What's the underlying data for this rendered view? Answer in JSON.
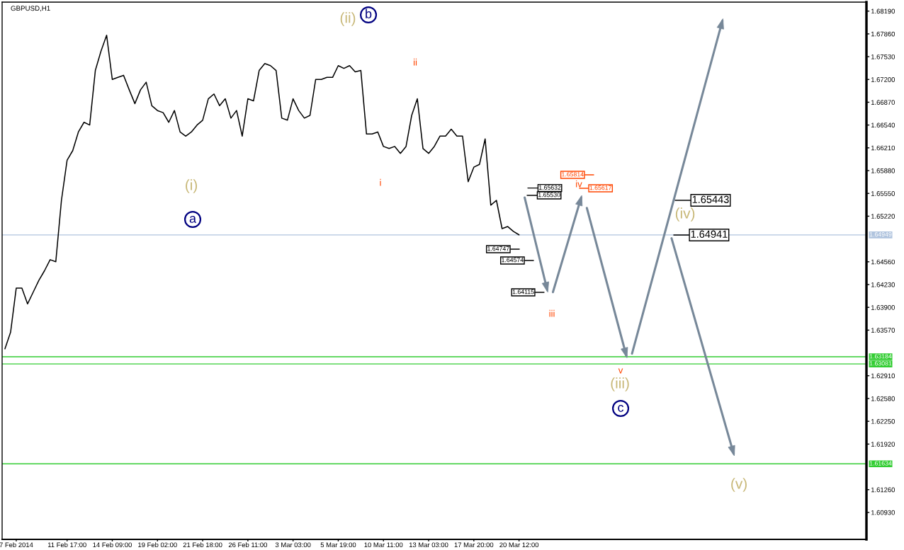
{
  "chart_data": {
    "type": "line",
    "title": "GBPUSD,H1",
    "categories": [
      null,
      null,
      "7 Feb 2014",
      null,
      null,
      null,
      null,
      null,
      null,
      null,
      null,
      "11 Feb 17:00",
      null,
      null,
      null,
      null,
      null,
      null,
      null,
      "14 Feb 09:00",
      null,
      null,
      null,
      null,
      null,
      null,
      null,
      "19 Feb 02:00",
      null,
      null,
      null,
      null,
      null,
      null,
      null,
      "21 Feb 18:00",
      null,
      null,
      null,
      null,
      null,
      null,
      null,
      "26 Feb 11:00",
      null,
      null,
      null,
      null,
      null,
      null,
      null,
      "3 Mar 03:00",
      null,
      null,
      null,
      null,
      null,
      null,
      null,
      "5 Mar 19:00",
      null,
      null,
      null,
      null,
      null,
      null,
      null,
      "10 Mar 11:00",
      null,
      null,
      null,
      null,
      null,
      null,
      null,
      "13 Mar 03:00",
      null,
      null,
      null,
      null,
      null,
      null,
      null,
      "17 Mar 20:00",
      null,
      null,
      null,
      null,
      null,
      null,
      null,
      "20 Mar 12:00",
      null,
      null,
      null,
      null,
      null,
      null,
      null,
      null,
      null,
      null,
      null,
      null,
      null,
      null,
      null,
      null,
      null,
      null,
      null,
      null,
      null,
      null,
      null,
      null,
      null,
      null,
      null,
      null,
      null,
      null,
      null,
      null,
      null,
      null,
      null,
      null,
      null,
      null,
      null,
      null,
      null,
      null,
      null,
      null,
      null,
      null,
      null,
      null,
      null,
      null,
      null,
      null,
      null,
      null,
      null,
      null,
      null,
      null,
      null,
      null,
      null
    ],
    "series": [
      {
        "color": "#000000",
        "values": [
          1.633,
          1.6354,
          1.6418,
          1.6418,
          1.6395,
          1.6412,
          1.6429,
          1.6443,
          1.6459,
          1.6456,
          1.6545,
          1.6603,
          1.6617,
          1.6644,
          1.6658,
          1.6654,
          1.6733,
          1.6761,
          1.6784,
          1.672,
          1.6723,
          1.6726,
          1.6705,
          1.6685,
          1.6705,
          1.6716,
          1.6682,
          1.6675,
          1.6672,
          1.6658,
          1.6675,
          1.6644,
          1.6638,
          1.6644,
          1.6654,
          1.6661,
          1.6692,
          1.6699,
          1.6682,
          1.6692,
          1.6664,
          1.6675,
          1.6638,
          1.6692,
          1.6689,
          1.6733,
          1.6743,
          1.674,
          1.6733,
          1.6664,
          1.6661,
          1.6692,
          1.6675,
          1.6664,
          1.6668,
          1.672,
          1.672,
          1.6723,
          1.6723,
          1.674,
          1.6736,
          1.674,
          1.6731,
          1.6733,
          1.6641,
          1.6641,
          1.6644,
          1.6623,
          1.662,
          1.6623,
          1.6613,
          1.6623,
          1.6668,
          1.6692,
          1.662,
          1.6613,
          1.6623,
          1.6638,
          1.6638,
          1.6648,
          1.6638,
          1.6638,
          1.6572,
          1.6593,
          1.6597,
          1.6634,
          1.6538,
          1.6545,
          1.6504,
          1.6507,
          1.65,
          1.6495,
          null,
          null,
          null,
          null,
          null,
          null,
          null,
          null,
          null,
          null,
          null,
          null,
          null,
          null,
          null,
          null,
          null,
          null,
          null,
          null,
          null,
          null,
          null,
          null,
          null,
          null,
          null,
          null,
          null,
          null,
          null,
          null,
          null,
          null,
          null,
          null,
          null,
          null,
          null,
          null,
          null,
          null,
          null,
          null,
          null,
          null,
          null,
          null,
          null,
          null,
          null,
          null,
          null,
          null,
          null,
          null,
          null,
          null,
          null,
          null,
          null
        ]
      },
      {
        "color": "#778899",
        "values": [
          null,
          null,
          null,
          null,
          null,
          null,
          null,
          null,
          null,
          null,
          null,
          null,
          null,
          null,
          null,
          null,
          null,
          null,
          null,
          null,
          null,
          null,
          null,
          null,
          null,
          null,
          null,
          null,
          null,
          null,
          null,
          null,
          null,
          null,
          null,
          null,
          null,
          null,
          null,
          null,
          null,
          null,
          null,
          null,
          null,
          null,
          null,
          null,
          null,
          null,
          null,
          null,
          null,
          null,
          null,
          null,
          null,
          null,
          null,
          null,
          null,
          null,
          null,
          null,
          null,
          null,
          null,
          null,
          null,
          null,
          null,
          null,
          null,
          null,
          null,
          null,
          null,
          null,
          null,
          null,
          null,
          null,
          null,
          null,
          null,
          null,
          null,
          null,
          null,
          null,
          null,
          null,
          1.6549,
          null,
          null,
          null,
          1.6415,
          null,
          null,
          null,
          null,
          null,
          null,
          null,
          null,
          null,
          null,
          null,
          null,
          null,
          null,
          null,
          null,
          null,
          null,
          null,
          null,
          null,
          null,
          null,
          null,
          null,
          null,
          null,
          null,
          null,
          null,
          null,
          null,
          null,
          null,
          null,
          null,
          null,
          null,
          null,
          null,
          null,
          null,
          null,
          null,
          null,
          null,
          null,
          null,
          null,
          null,
          null,
          null,
          null,
          null,
          null,
          null
        ]
      },
      {
        "color": "#778899",
        "values": [
          null,
          null,
          null,
          null,
          null,
          null,
          null,
          null,
          null,
          null,
          null,
          null,
          null,
          null,
          null,
          null,
          null,
          null,
          null,
          null,
          null,
          null,
          null,
          null,
          null,
          null,
          null,
          null,
          null,
          null,
          null,
          null,
          null,
          null,
          null,
          null,
          null,
          null,
          null,
          null,
          null,
          null,
          null,
          null,
          null,
          null,
          null,
          null,
          null,
          null,
          null,
          null,
          null,
          null,
          null,
          null,
          null,
          null,
          null,
          null,
          null,
          null,
          null,
          null,
          null,
          null,
          null,
          null,
          null,
          null,
          null,
          null,
          null,
          null,
          null,
          null,
          null,
          null,
          null,
          null,
          null,
          null,
          null,
          null,
          null,
          null,
          null,
          null,
          null,
          null,
          null,
          null,
          null,
          null,
          null,
          null,
          null,
          1.6412,
          null,
          null,
          null,
          null,
          1.6549,
          null,
          null,
          null,
          null,
          null,
          null,
          null,
          null,
          null,
          null,
          null,
          null,
          null,
          null,
          null,
          null,
          null,
          null,
          null,
          null,
          null,
          null,
          null,
          null,
          null,
          null,
          null,
          null,
          null,
          null,
          null,
          null,
          null,
          null,
          null,
          null,
          null,
          null,
          null,
          null,
          null,
          null,
          null,
          null,
          null,
          null,
          null,
          null,
          null,
          null
        ]
      },
      {
        "color": "#778899",
        "values": [
          null,
          null,
          null,
          null,
          null,
          null,
          null,
          null,
          null,
          null,
          null,
          null,
          null,
          null,
          null,
          null,
          null,
          null,
          null,
          null,
          null,
          null,
          null,
          null,
          null,
          null,
          null,
          null,
          null,
          null,
          null,
          null,
          null,
          null,
          null,
          null,
          null,
          null,
          null,
          null,
          null,
          null,
          null,
          null,
          null,
          null,
          null,
          null,
          null,
          null,
          null,
          null,
          null,
          null,
          null,
          null,
          null,
          null,
          null,
          null,
          null,
          null,
          null,
          null,
          null,
          null,
          null,
          null,
          null,
          null,
          null,
          null,
          null,
          null,
          null,
          null,
          null,
          null,
          null,
          null,
          null,
          null,
          null,
          null,
          null,
          null,
          null,
          null,
          null,
          null,
          null,
          null,
          null,
          null,
          null,
          null,
          null,
          null,
          null,
          null,
          null,
          null,
          null,
          1.6534,
          null,
          null,
          null,
          null,
          null,
          null,
          1.632,
          null,
          null,
          null,
          null,
          null,
          null,
          null,
          null,
          null,
          null,
          null,
          null,
          null,
          null,
          null,
          null,
          null,
          null,
          null,
          null,
          null,
          null,
          null,
          null,
          null,
          null,
          null,
          null,
          null,
          null,
          null,
          null,
          null,
          null,
          null,
          null,
          null,
          null,
          null,
          null,
          null,
          null
        ]
      },
      {
        "color": "#778899",
        "values": [
          null,
          null,
          null,
          null,
          null,
          null,
          null,
          null,
          null,
          null,
          null,
          null,
          null,
          null,
          null,
          null,
          null,
          null,
          null,
          null,
          null,
          null,
          null,
          null,
          null,
          null,
          null,
          null,
          null,
          null,
          null,
          null,
          null,
          null,
          null,
          null,
          null,
          null,
          null,
          null,
          null,
          null,
          null,
          null,
          null,
          null,
          null,
          null,
          null,
          null,
          null,
          null,
          null,
          null,
          null,
          null,
          null,
          null,
          null,
          null,
          null,
          null,
          null,
          null,
          null,
          null,
          null,
          null,
          null,
          null,
          null,
          null,
          null,
          null,
          null,
          null,
          null,
          null,
          null,
          null,
          null,
          null,
          null,
          null,
          null,
          null,
          null,
          null,
          null,
          null,
          null,
          null,
          null,
          null,
          null,
          null,
          null,
          null,
          null,
          null,
          null,
          null,
          null,
          null,
          null,
          null,
          null,
          null,
          null,
          null,
          null,
          1.6323,
          null,
          null,
          null,
          null,
          null,
          null,
          null,
          null,
          null,
          null,
          null,
          null,
          null,
          null,
          null,
          1.6805,
          null,
          null,
          null,
          null,
          null,
          null,
          null,
          null,
          null,
          null,
          null,
          null,
          null,
          null,
          null,
          null,
          null,
          null,
          null,
          null,
          null,
          null,
          null,
          null,
          null
        ]
      },
      {
        "color": "#778899",
        "values": [
          null,
          null,
          null,
          null,
          null,
          null,
          null,
          null,
          null,
          null,
          null,
          null,
          null,
          null,
          null,
          null,
          null,
          null,
          null,
          null,
          null,
          null,
          null,
          null,
          null,
          null,
          null,
          null,
          null,
          null,
          null,
          null,
          null,
          null,
          null,
          null,
          null,
          null,
          null,
          null,
          null,
          null,
          null,
          null,
          null,
          null,
          null,
          null,
          null,
          null,
          null,
          null,
          null,
          null,
          null,
          null,
          null,
          null,
          null,
          null,
          null,
          null,
          null,
          null,
          null,
          null,
          null,
          null,
          null,
          null,
          null,
          null,
          null,
          null,
          null,
          null,
          null,
          null,
          null,
          null,
          null,
          null,
          null,
          null,
          null,
          null,
          null,
          null,
          null,
          null,
          null,
          null,
          null,
          null,
          null,
          null,
          null,
          null,
          null,
          null,
          null,
          null,
          null,
          null,
          null,
          null,
          null,
          null,
          null,
          null,
          null,
          null,
          null,
          null,
          null,
          null,
          null,
          null,
          1.649,
          null,
          null,
          null,
          null,
          null,
          null,
          null,
          null,
          null,
          null,
          1.6178,
          null,
          null,
          null,
          null,
          null,
          null,
          null,
          null,
          null,
          null,
          null,
          null,
          null,
          null,
          null,
          null,
          null,
          null,
          null,
          null,
          null,
          null,
          null
        ]
      }
    ],
    "ylim": [
      1.6054,
      1.6832
    ],
    "yticks": [
      {
        "value": 1.6819,
        "label": "1.68190"
      },
      {
        "value": 1.6786,
        "label": "1.67860"
      },
      {
        "value": 1.6753,
        "label": "1.67530"
      },
      {
        "value": 1.672,
        "label": "1.67200"
      },
      {
        "value": 1.6687,
        "label": "1.66870"
      },
      {
        "value": 1.6654,
        "label": "1.66540"
      },
      {
        "value": 1.6621,
        "label": "1.66210"
      },
      {
        "value": 1.6588,
        "label": "1.65880"
      },
      {
        "value": 1.6555,
        "label": "1.65550"
      },
      {
        "value": 1.6522,
        "label": "1.65220"
      },
      {
        "value": 1.6456,
        "label": "1.64560"
      },
      {
        "value": 1.6423,
        "label": "1.64230"
      },
      {
        "value": 1.639,
        "label": "1.63900"
      },
      {
        "value": 1.6357,
        "label": "1.63570"
      },
      {
        "value": 1.6291,
        "label": "1.62910"
      },
      {
        "value": 1.6258,
        "label": "1.62580"
      },
      {
        "value": 1.6225,
        "label": "1.62250"
      },
      {
        "value": 1.6192,
        "label": "1.61920"
      },
      {
        "value": 1.6126,
        "label": "1.61260"
      },
      {
        "value": 1.6093,
        "label": "1.60930"
      }
    ],
    "ref_lines": [
      {
        "axis": "y",
        "value": 1.64949,
        "label": "1.64949",
        "color": "#b0c4de"
      },
      {
        "axis": "y",
        "value": 1.63184,
        "label": "1.63184",
        "color": "#32cd32"
      },
      {
        "axis": "y",
        "value": 1.63081,
        "label": "1.63081",
        "color": "#32cd32"
      },
      {
        "axis": "y",
        "value": 1.61634,
        "label": "1.61634",
        "color": "#32cd32"
      }
    ],
    "annotations": [
      "(i)",
      "a",
      "(ii)",
      "b",
      "i",
      "ii",
      "iii",
      "iv",
      "v",
      "(iii)",
      "c",
      "(iv)",
      "(v)",
      "1.65632",
      "1.65530",
      "1.64747",
      "1.64574",
      "1.64115",
      "1.65814",
      "1.65617",
      "1.65443",
      "1.64941"
    ]
  }
}
